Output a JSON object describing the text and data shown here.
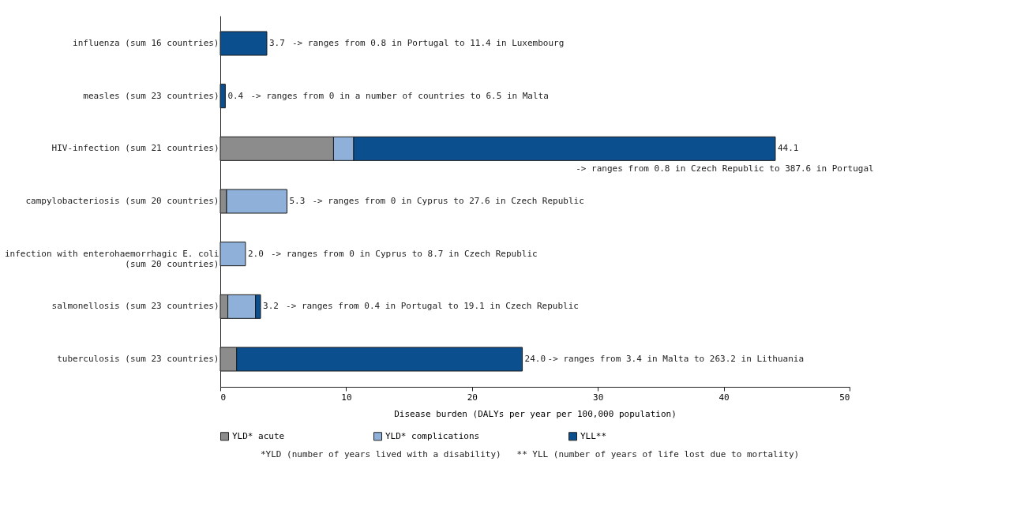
{
  "chart_data": {
    "type": "bar",
    "orientation": "horizontal",
    "stacked": true,
    "categories": [
      "influenza (sum 16 countries)",
      "measles (sum 23 countries)",
      "HIV-infection (sum 21 countries)",
      "campylobacteriosis (sum 20 countries)",
      "infection with enterohaemorrhagic E. coli (sum 20 countries)",
      "salmonellosis (sum 23 countries)",
      "tuberculosis (sum 23 countries)"
    ],
    "series": [
      {
        "name": "YLD* acute",
        "color": "#8c8c8c",
        "values": [
          0,
          0,
          9.0,
          0.5,
          0,
          0.6,
          1.3
        ]
      },
      {
        "name": "YLD* complications",
        "color": "#8fb0d8",
        "values": [
          0,
          0,
          1.6,
          4.8,
          2.0,
          2.2,
          0
        ]
      },
      {
        "name": "YLL**",
        "color": "#0b4f8f",
        "values": [
          3.7,
          0.4,
          33.5,
          0,
          0,
          0.4,
          22.7
        ]
      }
    ],
    "totals": [
      "3.7",
      "0.4",
      "44.1",
      "5.3",
      "2.0",
      "3.2",
      "24.0"
    ],
    "xlim": [
      0,
      50
    ],
    "xticks": [
      0,
      10,
      20,
      30,
      40,
      50
    ],
    "xlabel": "Disease burden (DALYs per year per 100,000 population)",
    "grid": false,
    "legend": "bottom",
    "annotations": [
      {
        "text": "-> ranges from 0.8 in Portugal to 11.4 in Luxembourg",
        "x": 3.7,
        "y": "influenza (sum 16 countries)"
      },
      {
        "text": "-> ranges from 0 in a number of countries to 6.5 in Malta",
        "x": 0.4,
        "y": "measles (sum 23 countries)"
      },
      {
        "text": "-> ranges from 0.8 in Czech Republic to 387.6 in Portugal",
        "x": 44.1,
        "y": "HIV-infection (sum 21 countries)"
      },
      {
        "text": "-> ranges from 0 in Cyprus to 27.6 in Czech Republic",
        "x": 5.3,
        "y": "campylobacteriosis (sum 20 countries)"
      },
      {
        "text": "-> ranges from 0 in Cyprus to 8.7 in Czech Republic",
        "x": 2.0,
        "y": "infection with enterohaemorrhagic E. coli (sum 20 countries)"
      },
      {
        "text": "-> ranges from 0.4 in Portugal  to 19.1 in Czech Republic",
        "x": 3.2,
        "y": "salmonellosis (sum 23 countries)"
      },
      {
        "text": "-> ranges from 3.4 in Malta to 263.2 in Lithuania",
        "x": 24.0,
        "y": "tuberculosis (sum 23 countries)"
      },
      "*YLD (number of years lived with a disability)   ** YLL (number of years of life lost due to mortality)"
    ]
  }
}
